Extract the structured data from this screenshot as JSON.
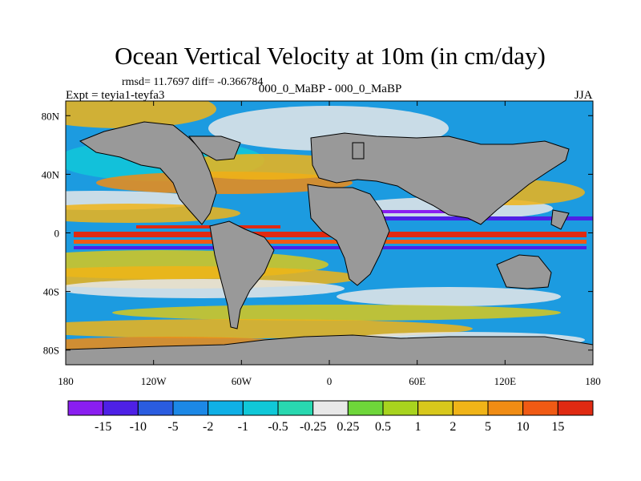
{
  "map": {
    "title": "Ocean Vertical Velocity at 10m (in cm/day)",
    "stats_line": "rmsd= 11.7697 diff= -0.366784",
    "expt_label": "Expt = teyia1-teyfa3",
    "center_label": "000_0_MaBP - 000_0_MaBP",
    "season": "JJA",
    "lon_ticks": [
      {
        "label": "180",
        "lon": -180
      },
      {
        "label": "120W",
        "lon": -120
      },
      {
        "label": "60W",
        "lon": -60
      },
      {
        "label": "0",
        "lon": 0
      },
      {
        "label": "60E",
        "lon": 60
      },
      {
        "label": "120E",
        "lon": 120
      },
      {
        "label": "180",
        "lon": 180
      }
    ],
    "lat_ticks": [
      {
        "label": "80N",
        "lat": 80
      },
      {
        "label": "40N",
        "lat": 40
      },
      {
        "label": "0",
        "lat": 0
      },
      {
        "label": "40S",
        "lat": -40
      },
      {
        "label": "80S",
        "lat": -80
      }
    ],
    "land_color": "#999999"
  },
  "colorbar": {
    "colors": [
      "#8A1EF0",
      "#4E20E6",
      "#2A5CE0",
      "#1C88E6",
      "#0FB0E6",
      "#10C8D8",
      "#28D8B0",
      "#E8E8E8",
      "#6ED63A",
      "#A8D41E",
      "#D8C81C",
      "#F0B418",
      "#F08C14",
      "#F05A14",
      "#E02A12"
    ],
    "labels": [
      "-15",
      "-10",
      "-5",
      "-2",
      "-1",
      "-0.5",
      "-0.25",
      "0.25",
      "0.5",
      "1",
      "2",
      "5",
      "10",
      "15"
    ]
  }
}
